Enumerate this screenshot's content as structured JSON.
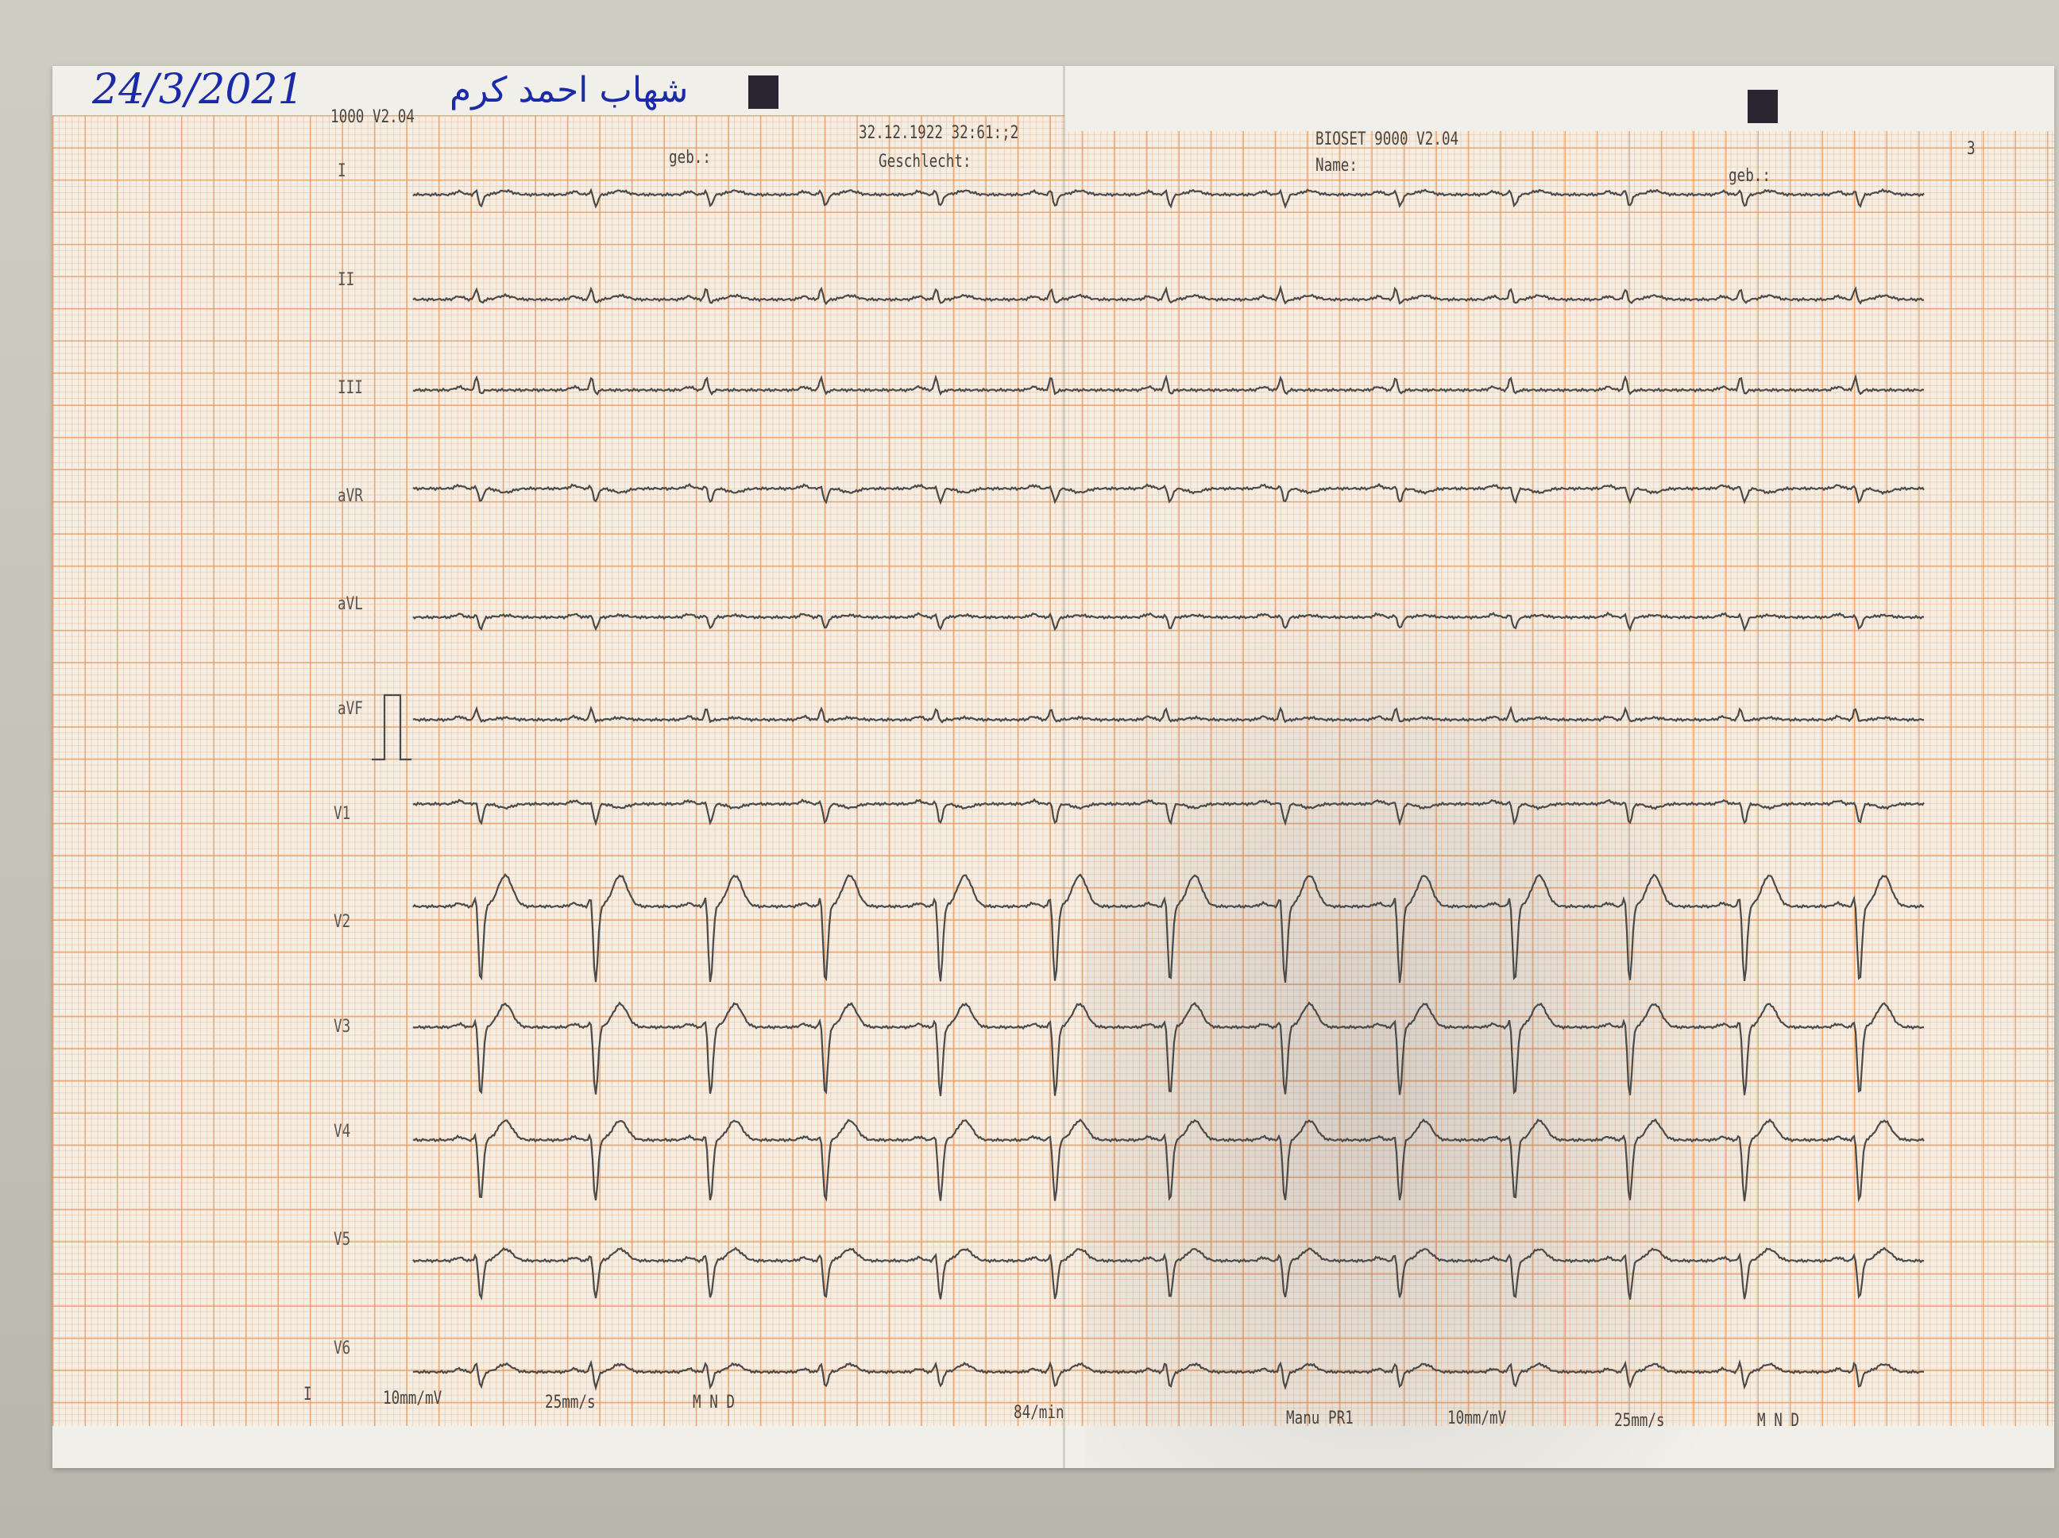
{
  "header": {
    "handwritten_date": "24/3/2021",
    "handwritten_name": "شهاب احمد كرم",
    "left_device": "1000 V2.04",
    "left_datetime": "32.12.1922 32:61:;2",
    "left_geb": "geb.:",
    "left_geschlecht": "Geschlecht:",
    "right_device": "BIOSET 9000 V2.04",
    "right_name": "Name:",
    "right_geb": "geb.:",
    "right_page": "3"
  },
  "footer": {
    "marker": "I",
    "gain_left": "10mm/mV",
    "speed_left": "25mm/s",
    "filter_left": "M  N  D",
    "rate": "84/min",
    "mode": "Manu PR1",
    "gain_right": "10mm/mV",
    "speed_right": "25mm/s",
    "filter_right": "M  N  D"
  },
  "colors": {
    "trace": "#4a4a4a",
    "grid": "#e8965a",
    "ink": "#1b2aa8"
  },
  "chart_data": {
    "type": "line",
    "title": "",
    "heart_rate_bpm": 84,
    "paper_speed_mm_s": 25,
    "gain_mm_mV": 10,
    "beats_shown": 13,
    "grid": true,
    "leads": [
      {
        "name": "I",
        "r": 0.15,
        "s": -0.3,
        "t": 0.1
      },
      {
        "name": "II",
        "r": 0.3,
        "s": -0.1,
        "t": 0.1
      },
      {
        "name": "III",
        "r": 0.35,
        "s": -0.1,
        "t": 0.0
      },
      {
        "name": "aVR",
        "r": 0.1,
        "s": -0.35,
        "t": -0.1
      },
      {
        "name": "aVL",
        "r": 0.1,
        "s": -0.3,
        "t": 0.05
      },
      {
        "name": "aVF",
        "r": 0.3,
        "s": -0.05,
        "t": 0.05
      },
      {
        "name": "V1",
        "r": 0.1,
        "s": -0.5,
        "t": -0.1
      },
      {
        "name": "V2",
        "r": 0.5,
        "s": -2.0,
        "t": 0.8
      },
      {
        "name": "V3",
        "r": 0.4,
        "s": -1.8,
        "t": 0.6
      },
      {
        "name": "V4",
        "r": 0.3,
        "s": -1.6,
        "t": 0.5
      },
      {
        "name": "V5",
        "r": 0.3,
        "s": -1.0,
        "t": 0.3
      },
      {
        "name": "V6",
        "r": 0.3,
        "s": -0.4,
        "t": 0.2
      }
    ]
  }
}
